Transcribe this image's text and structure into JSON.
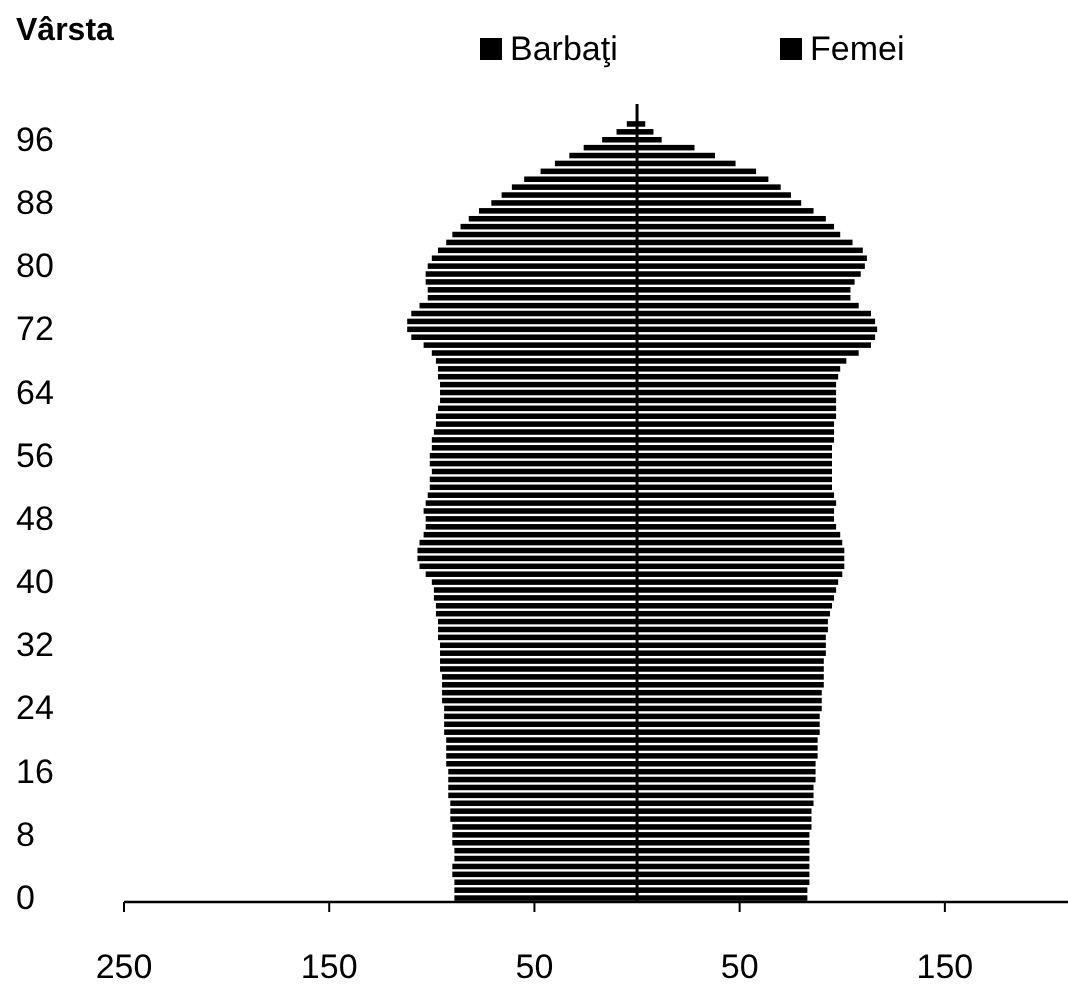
{
  "chart_data": {
    "type": "bar",
    "orientation": "horizontal",
    "stacked": true,
    "ylabel": "Vârsta",
    "categories": [
      null,
      null,
      "96",
      null,
      null,
      null,
      null,
      null,
      null,
      null,
      "88",
      null,
      null,
      null,
      null,
      null,
      null,
      null,
      "80",
      null,
      null,
      null,
      null,
      null,
      null,
      null,
      "72",
      null,
      null,
      null,
      null,
      null,
      null,
      null,
      "64",
      null,
      null,
      null,
      null,
      null,
      null,
      null,
      "56",
      null,
      null,
      null,
      null,
      null,
      null,
      null,
      "48",
      null,
      null,
      null,
      null,
      null,
      null,
      null,
      "40",
      null,
      null,
      null,
      null,
      null,
      null,
      null,
      "32",
      null,
      null,
      null,
      null,
      null,
      null,
      null,
      "24",
      null,
      null,
      null,
      null,
      null,
      null,
      null,
      "16",
      null,
      null,
      null,
      null,
      null,
      null,
      null,
      "8",
      null,
      null,
      null,
      null,
      null,
      null,
      null,
      "0"
    ],
    "series": [
      {
        "name": "Barbaţi",
        "color": "#000000",
        "values": [
          -5,
          -10,
          -17,
          -26,
          -33,
          -40,
          -47,
          -55,
          -61,
          -66,
          -71,
          -77,
          -82,
          -86,
          -90,
          -93,
          -97,
          -100,
          -102,
          -103,
          -103,
          -102,
          -102,
          -106,
          -110,
          -112,
          -112,
          -110,
          -104,
          -100,
          -98,
          -97,
          -97,
          -96,
          -96,
          -96,
          -97,
          -98,
          -98,
          -99,
          -100,
          -100,
          -101,
          -101,
          -100,
          -101,
          -101,
          -102,
          -103,
          -104,
          -103,
          -103,
          -104,
          -106,
          -107,
          -107,
          -106,
          -103,
          -100,
          -99,
          -99,
          -98,
          -98,
          -97,
          -97,
          -97,
          -96,
          -96,
          -96,
          -96,
          -95,
          -95,
          -95,
          -95,
          -94,
          -94,
          -94,
          -94,
          -93,
          -93,
          -93,
          -93,
          -92,
          -92,
          -92,
          -92,
          -91,
          -91,
          -91,
          -90,
          -90,
          -90,
          -89,
          -89,
          -90,
          -90,
          -89,
          -89,
          -89
        ]
      },
      {
        "name": "Femei",
        "color": "#000000",
        "values": [
          4,
          8,
          12,
          28,
          38,
          48,
          58,
          64,
          70,
          75,
          80,
          86,
          92,
          96,
          99,
          105,
          110,
          112,
          111,
          109,
          106,
          104,
          104,
          108,
          114,
          116,
          117,
          116,
          114,
          108,
          102,
          99,
          98,
          97,
          97,
          97,
          97,
          97,
          96,
          96,
          96,
          95,
          95,
          95,
          95,
          95,
          95,
          96,
          97,
          96,
          96,
          97,
          99,
          100,
          101,
          101,
          101,
          100,
          98,
          97,
          96,
          95,
          94,
          93,
          93,
          92,
          92,
          92,
          91,
          91,
          91,
          91,
          90,
          90,
          90,
          89,
          89,
          89,
          88,
          88,
          88,
          87,
          87,
          87,
          86,
          86,
          86,
          85,
          85,
          85,
          84,
          84,
          84,
          84,
          84,
          84,
          84,
          83,
          83
        ]
      }
    ],
    "xlim": [
      -250,
      210
    ],
    "xticks": [
      {
        "value": -250,
        "label": "250"
      },
      {
        "value": -150,
        "label": "150"
      },
      {
        "value": -50,
        "label": "50"
      },
      {
        "value": 50,
        "label": "50"
      },
      {
        "value": 150,
        "label": "150"
      }
    ],
    "legend": "top",
    "grid": false
  }
}
